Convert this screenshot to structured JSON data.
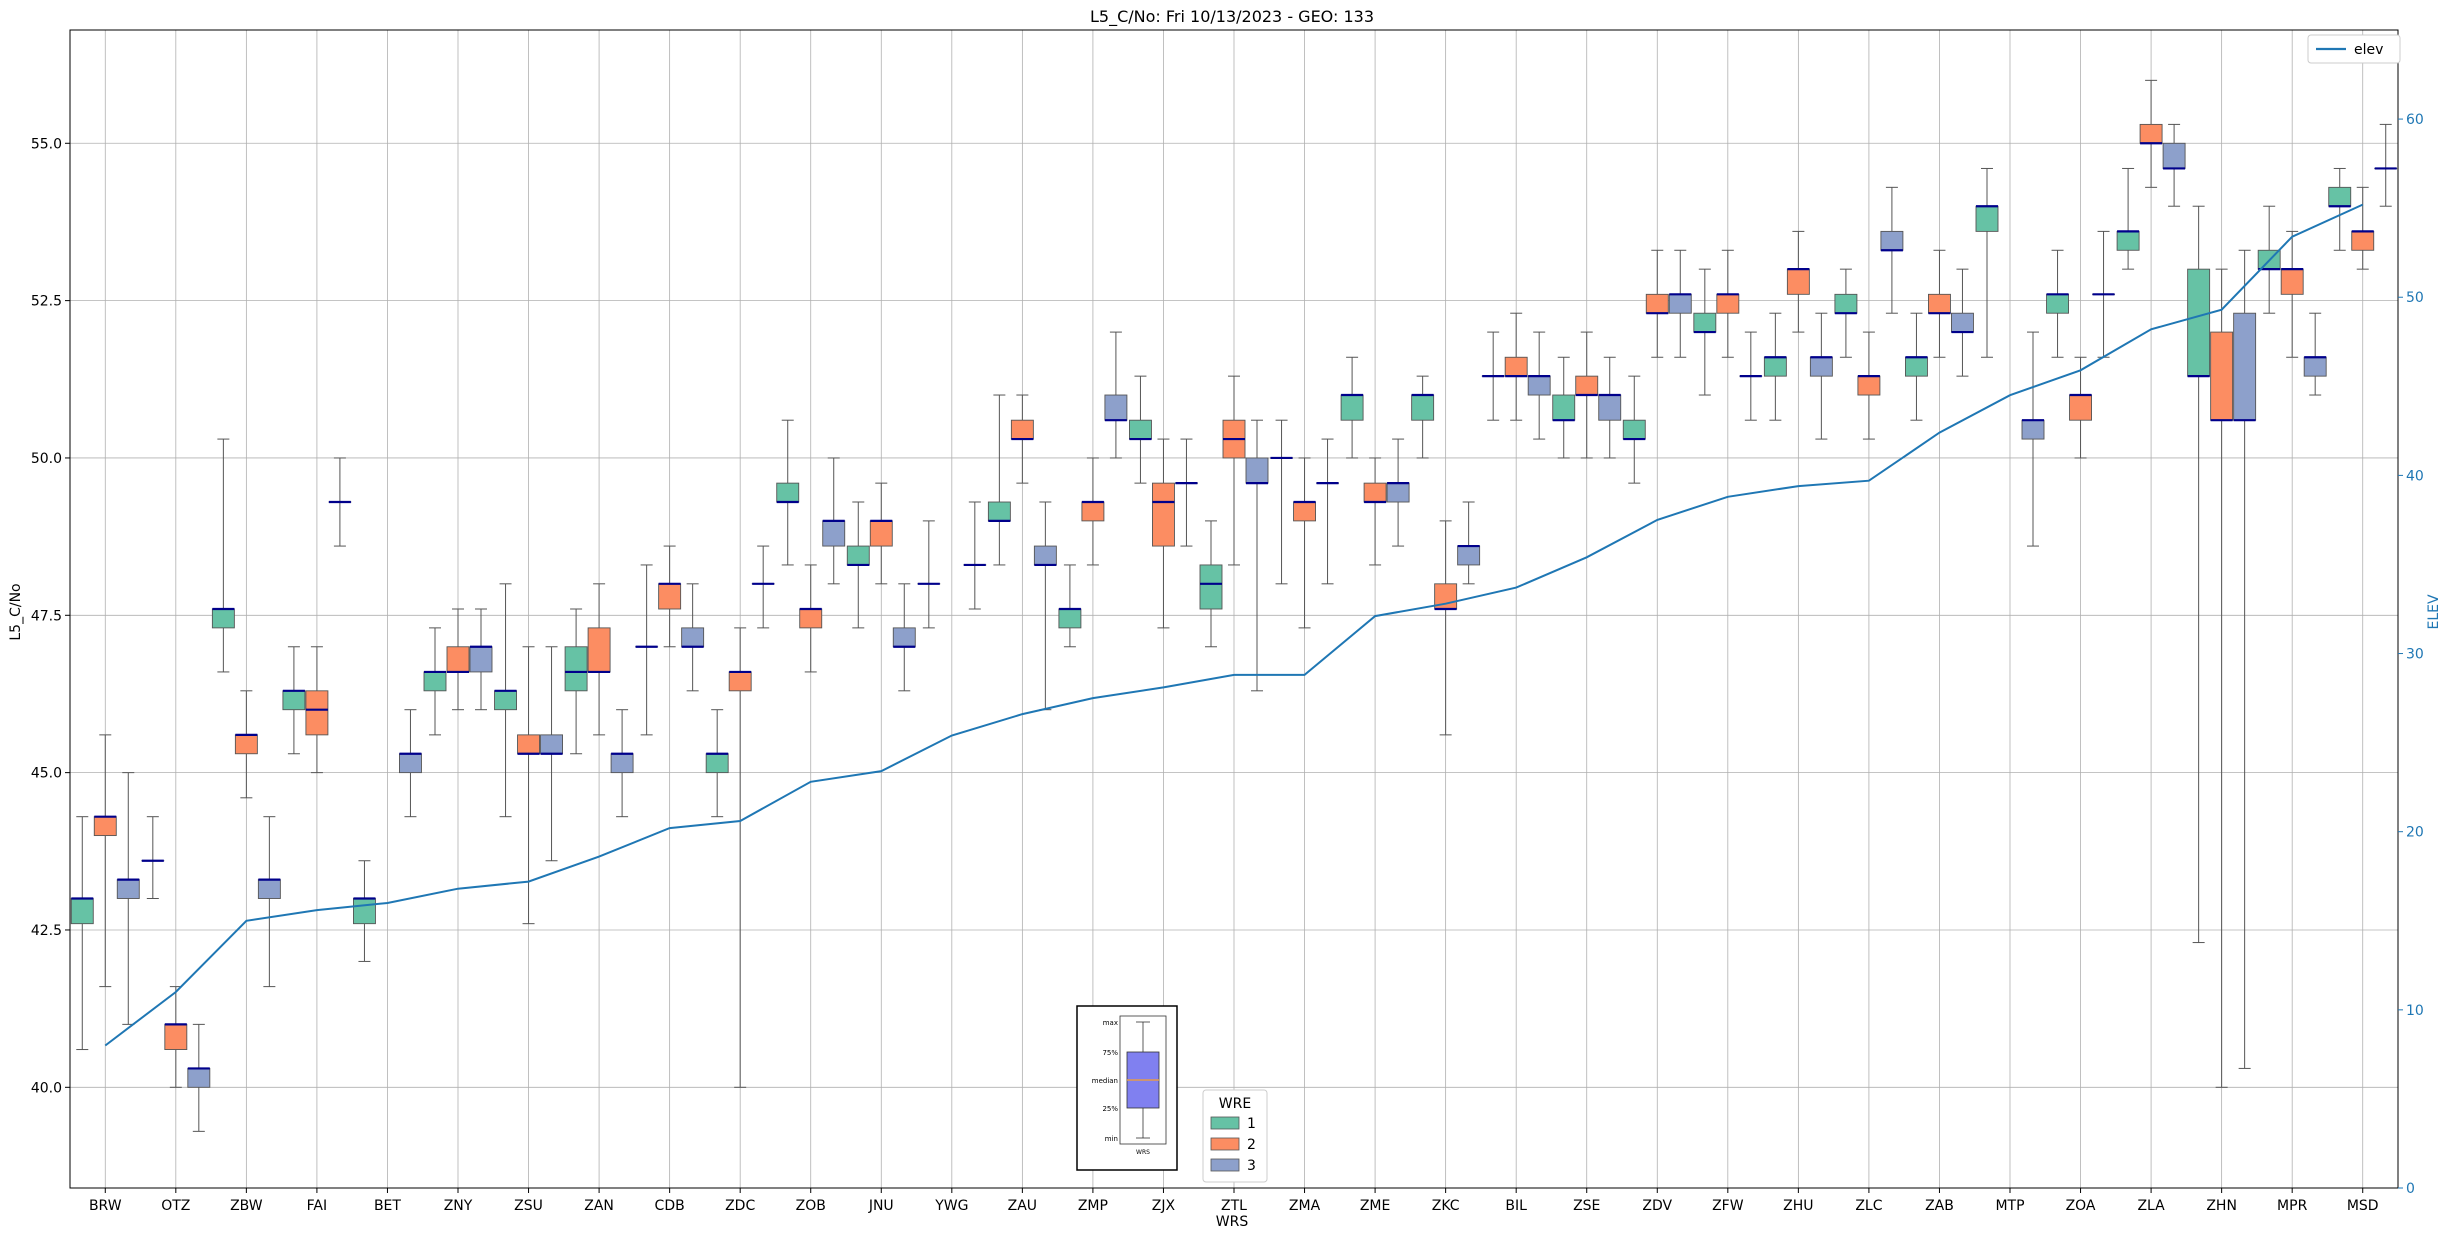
{
  "chart_data": {
    "type": "box",
    "title": "L5_C/No: Fri 10/13/2023 - GEO: 133",
    "xlabel": "WRS",
    "ylabel": "L5_C/No",
    "y2label": "ELEV",
    "ylim": [
      38.4,
      56.8
    ],
    "y2lim": [
      0,
      65
    ],
    "yticks": [
      "40.0",
      "42.5",
      "45.0",
      "47.5",
      "50.0",
      "52.5",
      "55.0"
    ],
    "y2ticks": [
      "0",
      "10",
      "20",
      "30",
      "40",
      "50",
      "60"
    ],
    "grid": true,
    "categories": [
      "BRW",
      "OTZ",
      "ZBW",
      "FAI",
      "BET",
      "ZNY",
      "ZSU",
      "ZAN",
      "CDB",
      "ZDC",
      "ZOB",
      "JNU",
      "YWG",
      "ZAU",
      "ZMP",
      "ZJX",
      "ZTL",
      "ZMA",
      "ZME",
      "ZKC",
      "BIL",
      "ZSE",
      "ZDV",
      "ZFW",
      "ZHU",
      "ZLC",
      "ZAB",
      "MTP",
      "ZOA",
      "ZLA",
      "ZHN",
      "MPR",
      "MSD"
    ],
    "line_series": {
      "name": "elev",
      "color": "#1f77b4",
      "values": [
        8,
        11,
        15,
        15.6,
        16,
        16.8,
        17.2,
        18.6,
        20.2,
        20.6,
        22.8,
        23.4,
        25.4,
        26.6,
        27.5,
        28.1,
        28.8,
        28.8,
        32.1,
        32.8,
        33.7,
        35.4,
        37.5,
        38.8,
        39.4,
        39.7,
        42.4,
        44.5,
        45.9,
        48.2,
        49.3,
        53.4,
        55.2
      ]
    },
    "wre_colors": {
      "1": "#66c2a5",
      "2": "#fc8d62",
      "3": "#8da0cb"
    },
    "median_color": "#00008b",
    "series": [
      {
        "category": "BRW",
        "wre": 1,
        "min": 40.6,
        "q1": 42.6,
        "median": 43.0,
        "q3": 43.0,
        "max": 44.3
      },
      {
        "category": "BRW",
        "wre": 2,
        "min": 41.6,
        "q1": 44.0,
        "median": 44.3,
        "q3": 44.3,
        "max": 45.6
      },
      {
        "category": "BRW",
        "wre": 3,
        "min": 41.0,
        "q1": 43.0,
        "median": 43.3,
        "q3": 43.3,
        "max": 45.0
      },
      {
        "category": "OTZ",
        "wre": 1,
        "min": 43.0,
        "q1": 43.6,
        "median": 43.6,
        "q3": 43.6,
        "max": 44.3
      },
      {
        "category": "OTZ",
        "wre": 2,
        "min": 40.0,
        "q1": 40.6,
        "median": 41.0,
        "q3": 41.0,
        "max": 41.6
      },
      {
        "category": "OTZ",
        "wre": 3,
        "min": 39.3,
        "q1": 40.0,
        "median": 40.3,
        "q3": 40.3,
        "max": 41.0
      },
      {
        "category": "ZBW",
        "wre": 1,
        "min": 46.6,
        "q1": 47.3,
        "median": 47.6,
        "q3": 47.6,
        "max": 50.3
      },
      {
        "category": "ZBW",
        "wre": 2,
        "min": 44.6,
        "q1": 45.3,
        "median": 45.6,
        "q3": 45.6,
        "max": 46.3
      },
      {
        "category": "ZBW",
        "wre": 3,
        "min": 41.6,
        "q1": 43.0,
        "median": 43.3,
        "q3": 43.3,
        "max": 44.3
      },
      {
        "category": "FAI",
        "wre": 1,
        "min": 45.3,
        "q1": 46.0,
        "median": 46.3,
        "q3": 46.3,
        "max": 47.0
      },
      {
        "category": "FAI",
        "wre": 2,
        "min": 45.0,
        "q1": 45.6,
        "median": 46.0,
        "q3": 46.3,
        "max": 47.0
      },
      {
        "category": "FAI",
        "wre": 3,
        "min": 48.6,
        "q1": 49.3,
        "median": 49.3,
        "q3": 49.3,
        "max": 50.0
      },
      {
        "category": "BET",
        "wre": 1,
        "min": 42.0,
        "q1": 42.6,
        "median": 43.0,
        "q3": 43.0,
        "max": 43.6
      },
      {
        "category": "BET",
        "wre": 3,
        "min": 44.3,
        "q1": 45.0,
        "median": 45.3,
        "q3": 45.3,
        "max": 46.0
      },
      {
        "category": "ZNY",
        "wre": 1,
        "min": 45.6,
        "q1": 46.3,
        "median": 46.6,
        "q3": 46.6,
        "max": 47.3
      },
      {
        "category": "ZNY",
        "wre": 2,
        "min": 46.0,
        "q1": 46.6,
        "median": 46.6,
        "q3": 47.0,
        "max": 47.6
      },
      {
        "category": "ZNY",
        "wre": 3,
        "min": 46.0,
        "q1": 46.6,
        "median": 47.0,
        "q3": 47.0,
        "max": 47.6
      },
      {
        "category": "ZSU",
        "wre": 1,
        "min": 44.3,
        "q1": 46.0,
        "median": 46.3,
        "q3": 46.3,
        "max": 48.0
      },
      {
        "category": "ZSU",
        "wre": 2,
        "min": 42.6,
        "q1": 45.3,
        "median": 45.3,
        "q3": 45.6,
        "max": 47.0
      },
      {
        "category": "ZSU",
        "wre": 3,
        "min": 43.6,
        "q1": 45.3,
        "median": 45.3,
        "q3": 45.6,
        "max": 47.0
      },
      {
        "category": "ZAN",
        "wre": 1,
        "min": 45.3,
        "q1": 46.3,
        "median": 46.6,
        "q3": 47.0,
        "max": 47.6
      },
      {
        "category": "ZAN",
        "wre": 2,
        "min": 45.6,
        "q1": 46.6,
        "median": 46.6,
        "q3": 47.3,
        "max": 48.0
      },
      {
        "category": "ZAN",
        "wre": 3,
        "min": 44.3,
        "q1": 45.0,
        "median": 45.3,
        "q3": 45.3,
        "max": 46.0
      },
      {
        "category": "CDB",
        "wre": 1,
        "min": 45.6,
        "q1": 47.0,
        "median": 47.0,
        "q3": 47.0,
        "max": 48.3
      },
      {
        "category": "CDB",
        "wre": 2,
        "min": 47.0,
        "q1": 47.6,
        "median": 48.0,
        "q3": 48.0,
        "max": 48.6
      },
      {
        "category": "CDB",
        "wre": 3,
        "min": 46.3,
        "q1": 47.0,
        "median": 47.0,
        "q3": 47.3,
        "max": 48.0
      },
      {
        "category": "ZDC",
        "wre": 1,
        "min": 44.3,
        "q1": 45.0,
        "median": 45.3,
        "q3": 45.3,
        "max": 46.0
      },
      {
        "category": "ZDC",
        "wre": 2,
        "min": 40.0,
        "q1": 46.3,
        "median": 46.6,
        "q3": 46.6,
        "max": 47.3
      },
      {
        "category": "ZDC",
        "wre": 3,
        "min": 47.3,
        "q1": 48.0,
        "median": 48.0,
        "q3": 48.0,
        "max": 48.6
      },
      {
        "category": "ZOB",
        "wre": 1,
        "min": 48.3,
        "q1": 49.3,
        "median": 49.3,
        "q3": 49.6,
        "max": 50.6
      },
      {
        "category": "ZOB",
        "wre": 2,
        "min": 46.6,
        "q1": 47.3,
        "median": 47.6,
        "q3": 47.6,
        "max": 48.3
      },
      {
        "category": "ZOB",
        "wre": 3,
        "min": 48.0,
        "q1": 48.6,
        "median": 49.0,
        "q3": 49.0,
        "max": 50.0
      },
      {
        "category": "JNU",
        "wre": 1,
        "min": 47.3,
        "q1": 48.3,
        "median": 48.3,
        "q3": 48.6,
        "max": 49.3
      },
      {
        "category": "JNU",
        "wre": 2,
        "min": 48.0,
        "q1": 48.6,
        "median": 49.0,
        "q3": 49.0,
        "max": 49.6
      },
      {
        "category": "JNU",
        "wre": 3,
        "min": 46.3,
        "q1": 47.0,
        "median": 47.0,
        "q3": 47.3,
        "max": 48.0
      },
      {
        "category": "YWG",
        "wre": 1,
        "min": 47.3,
        "q1": 48.0,
        "median": 48.0,
        "q3": 48.0,
        "max": 49.0
      },
      {
        "category": "YWG",
        "wre": 3,
        "min": 47.6,
        "q1": 48.3,
        "median": 48.3,
        "q3": 48.3,
        "max": 49.3
      },
      {
        "category": "ZAU",
        "wre": 1,
        "min": 48.3,
        "q1": 49.0,
        "median": 49.0,
        "q3": 49.3,
        "max": 51.0
      },
      {
        "category": "ZAU",
        "wre": 2,
        "min": 49.6,
        "q1": 50.3,
        "median": 50.3,
        "q3": 50.6,
        "max": 51.0
      },
      {
        "category": "ZAU",
        "wre": 3,
        "min": 46.0,
        "q1": 48.3,
        "median": 48.3,
        "q3": 48.6,
        "max": 49.3
      },
      {
        "category": "ZMP",
        "wre": 1,
        "min": 47.0,
        "q1": 47.3,
        "median": 47.6,
        "q3": 47.6,
        "max": 48.3
      },
      {
        "category": "ZMP",
        "wre": 2,
        "min": 48.3,
        "q1": 49.0,
        "median": 49.3,
        "q3": 49.3,
        "max": 50.0
      },
      {
        "category": "ZMP",
        "wre": 3,
        "min": 50.0,
        "q1": 50.6,
        "median": 50.6,
        "q3": 51.0,
        "max": 52.0
      },
      {
        "category": "ZJX",
        "wre": 1,
        "min": 49.6,
        "q1": 50.3,
        "median": 50.3,
        "q3": 50.6,
        "max": 51.3
      },
      {
        "category": "ZJX",
        "wre": 2,
        "min": 47.3,
        "q1": 48.6,
        "median": 49.3,
        "q3": 49.6,
        "max": 50.3
      },
      {
        "category": "ZJX",
        "wre": 3,
        "min": 48.6,
        "q1": 49.6,
        "median": 49.6,
        "q3": 49.6,
        "max": 50.3
      },
      {
        "category": "ZTL",
        "wre": 1,
        "min": 47.0,
        "q1": 47.6,
        "median": 48.0,
        "q3": 48.3,
        "max": 49.0
      },
      {
        "category": "ZTL",
        "wre": 2,
        "min": 48.3,
        "q1": 50.0,
        "median": 50.3,
        "q3": 50.6,
        "max": 51.3
      },
      {
        "category": "ZTL",
        "wre": 3,
        "min": 46.3,
        "q1": 49.6,
        "median": 49.6,
        "q3": 50.0,
        "max": 50.6
      },
      {
        "category": "ZMA",
        "wre": 1,
        "min": 48.0,
        "q1": 50.0,
        "median": 50.0,
        "q3": 50.0,
        "max": 50.6
      },
      {
        "category": "ZMA",
        "wre": 2,
        "min": 47.3,
        "q1": 49.0,
        "median": 49.3,
        "q3": 49.3,
        "max": 50.0
      },
      {
        "category": "ZMA",
        "wre": 3,
        "min": 48.0,
        "q1": 49.6,
        "median": 49.6,
        "q3": 49.6,
        "max": 50.3
      },
      {
        "category": "ZME",
        "wre": 1,
        "min": 50.0,
        "q1": 50.6,
        "median": 51.0,
        "q3": 51.0,
        "max": 51.6
      },
      {
        "category": "ZME",
        "wre": 2,
        "min": 48.3,
        "q1": 49.3,
        "median": 49.3,
        "q3": 49.6,
        "max": 50.0
      },
      {
        "category": "ZME",
        "wre": 3,
        "min": 48.6,
        "q1": 49.3,
        "median": 49.6,
        "q3": 49.6,
        "max": 50.3
      },
      {
        "category": "ZKC",
        "wre": 1,
        "min": 50.0,
        "q1": 50.6,
        "median": 51.0,
        "q3": 51.0,
        "max": 51.3
      },
      {
        "category": "ZKC",
        "wre": 2,
        "min": 45.6,
        "q1": 47.6,
        "median": 47.6,
        "q3": 48.0,
        "max": 49.0
      },
      {
        "category": "ZKC",
        "wre": 3,
        "min": 48.0,
        "q1": 48.3,
        "median": 48.6,
        "q3": 48.6,
        "max": 49.3
      },
      {
        "category": "BIL",
        "wre": 1,
        "min": 50.6,
        "q1": 51.3,
        "median": 51.3,
        "q3": 51.3,
        "max": 52.0
      },
      {
        "category": "BIL",
        "wre": 2,
        "min": 50.6,
        "q1": 51.3,
        "median": 51.3,
        "q3": 51.6,
        "max": 52.3
      },
      {
        "category": "BIL",
        "wre": 3,
        "min": 50.3,
        "q1": 51.0,
        "median": 51.3,
        "q3": 51.3,
        "max": 52.0
      },
      {
        "category": "ZSE",
        "wre": 1,
        "min": 50.0,
        "q1": 50.6,
        "median": 50.6,
        "q3": 51.0,
        "max": 51.6
      },
      {
        "category": "ZSE",
        "wre": 2,
        "min": 50.0,
        "q1": 51.0,
        "median": 51.0,
        "q3": 51.3,
        "max": 52.0
      },
      {
        "category": "ZSE",
        "wre": 3,
        "min": 50.0,
        "q1": 50.6,
        "median": 51.0,
        "q3": 51.0,
        "max": 51.6
      },
      {
        "category": "ZDV",
        "wre": 1,
        "min": 49.6,
        "q1": 50.3,
        "median": 50.3,
        "q3": 50.6,
        "max": 51.3
      },
      {
        "category": "ZDV",
        "wre": 2,
        "min": 51.6,
        "q1": 52.3,
        "median": 52.3,
        "q3": 52.6,
        "max": 53.3
      },
      {
        "category": "ZDV",
        "wre": 3,
        "min": 51.6,
        "q1": 52.3,
        "median": 52.6,
        "q3": 52.6,
        "max": 53.3
      },
      {
        "category": "ZFW",
        "wre": 1,
        "min": 51.0,
        "q1": 52.0,
        "median": 52.0,
        "q3": 52.3,
        "max": 53.0
      },
      {
        "category": "ZFW",
        "wre": 2,
        "min": 51.6,
        "q1": 52.3,
        "median": 52.6,
        "q3": 52.6,
        "max": 53.3
      },
      {
        "category": "ZFW",
        "wre": 3,
        "min": 50.6,
        "q1": 51.3,
        "median": 51.3,
        "q3": 51.3,
        "max": 52.0
      },
      {
        "category": "ZHU",
        "wre": 1,
        "min": 50.6,
        "q1": 51.3,
        "median": 51.6,
        "q3": 51.6,
        "max": 52.3
      },
      {
        "category": "ZHU",
        "wre": 2,
        "min": 52.0,
        "q1": 52.6,
        "median": 53.0,
        "q3": 53.0,
        "max": 53.6
      },
      {
        "category": "ZHU",
        "wre": 3,
        "min": 50.3,
        "q1": 51.3,
        "median": 51.6,
        "q3": 51.6,
        "max": 52.3
      },
      {
        "category": "ZLC",
        "wre": 1,
        "min": 51.6,
        "q1": 52.3,
        "median": 52.3,
        "q3": 52.6,
        "max": 53.0
      },
      {
        "category": "ZLC",
        "wre": 2,
        "min": 50.3,
        "q1": 51.0,
        "median": 51.3,
        "q3": 51.3,
        "max": 52.0
      },
      {
        "category": "ZLC",
        "wre": 3,
        "min": 52.3,
        "q1": 53.3,
        "median": 53.3,
        "q3": 53.6,
        "max": 54.3
      },
      {
        "category": "ZAB",
        "wre": 1,
        "min": 50.6,
        "q1": 51.3,
        "median": 51.6,
        "q3": 51.6,
        "max": 52.3
      },
      {
        "category": "ZAB",
        "wre": 2,
        "min": 51.6,
        "q1": 52.3,
        "median": 52.3,
        "q3": 52.6,
        "max": 53.3
      },
      {
        "category": "ZAB",
        "wre": 3,
        "min": 51.3,
        "q1": 52.0,
        "median": 52.0,
        "q3": 52.3,
        "max": 53.0
      },
      {
        "category": "MTP",
        "wre": 1,
        "min": 51.6,
        "q1": 53.6,
        "median": 54.0,
        "q3": 54.0,
        "max": 54.6
      },
      {
        "category": "MTP",
        "wre": 3,
        "min": 48.6,
        "q1": 50.3,
        "median": 50.6,
        "q3": 50.6,
        "max": 52.0
      },
      {
        "category": "ZOA",
        "wre": 1,
        "min": 51.6,
        "q1": 52.3,
        "median": 52.6,
        "q3": 52.6,
        "max": 53.3
      },
      {
        "category": "ZOA",
        "wre": 2,
        "min": 50.0,
        "q1": 50.6,
        "median": 51.0,
        "q3": 51.0,
        "max": 51.6
      },
      {
        "category": "ZOA",
        "wre": 3,
        "min": 51.6,
        "q1": 52.6,
        "median": 52.6,
        "q3": 52.6,
        "max": 53.6
      },
      {
        "category": "ZLA",
        "wre": 1,
        "min": 53.0,
        "q1": 53.3,
        "median": 53.6,
        "q3": 53.6,
        "max": 54.6
      },
      {
        "category": "ZLA",
        "wre": 2,
        "min": 54.3,
        "q1": 55.0,
        "median": 55.0,
        "q3": 55.3,
        "max": 56.0
      },
      {
        "category": "ZLA",
        "wre": 3,
        "min": 54.0,
        "q1": 54.6,
        "median": 54.6,
        "q3": 55.0,
        "max": 55.3
      },
      {
        "category": "ZHN",
        "wre": 1,
        "min": 42.3,
        "q1": 51.3,
        "median": 51.3,
        "q3": 53.0,
        "max": 54.0
      },
      {
        "category": "ZHN",
        "wre": 2,
        "min": 40.0,
        "q1": 50.6,
        "median": 50.6,
        "q3": 52.0,
        "max": 53.0
      },
      {
        "category": "ZHN",
        "wre": 3,
        "min": 40.3,
        "q1": 50.6,
        "median": 50.6,
        "q3": 52.3,
        "max": 53.3
      },
      {
        "category": "MPR",
        "wre": 1,
        "min": 52.3,
        "q1": 53.0,
        "median": 53.0,
        "q3": 53.3,
        "max": 54.0
      },
      {
        "category": "MPR",
        "wre": 2,
        "min": 51.6,
        "q1": 52.6,
        "median": 53.0,
        "q3": 53.0,
        "max": 53.6
      },
      {
        "category": "MPR",
        "wre": 3,
        "min": 51.0,
        "q1": 51.3,
        "median": 51.6,
        "q3": 51.6,
        "max": 52.3
      },
      {
        "category": "MSD",
        "wre": 1,
        "min": 53.3,
        "q1": 54.0,
        "median": 54.0,
        "q3": 54.3,
        "max": 54.6
      },
      {
        "category": "MSD",
        "wre": 2,
        "min": 53.0,
        "q1": 53.3,
        "median": 53.6,
        "q3": 53.6,
        "max": 54.3
      },
      {
        "category": "MSD",
        "wre": 3,
        "min": 54.0,
        "q1": 54.6,
        "median": 54.6,
        "q3": 54.6,
        "max": 55.3
      }
    ]
  },
  "legend_wre": {
    "title": "WRE",
    "items": [
      "1",
      "2",
      "3"
    ]
  },
  "legend_elev": {
    "label": "elev"
  },
  "key_box": {
    "labels": [
      "max",
      "75%",
      "median",
      "25%",
      "min"
    ],
    "xlabel": "WRS"
  }
}
